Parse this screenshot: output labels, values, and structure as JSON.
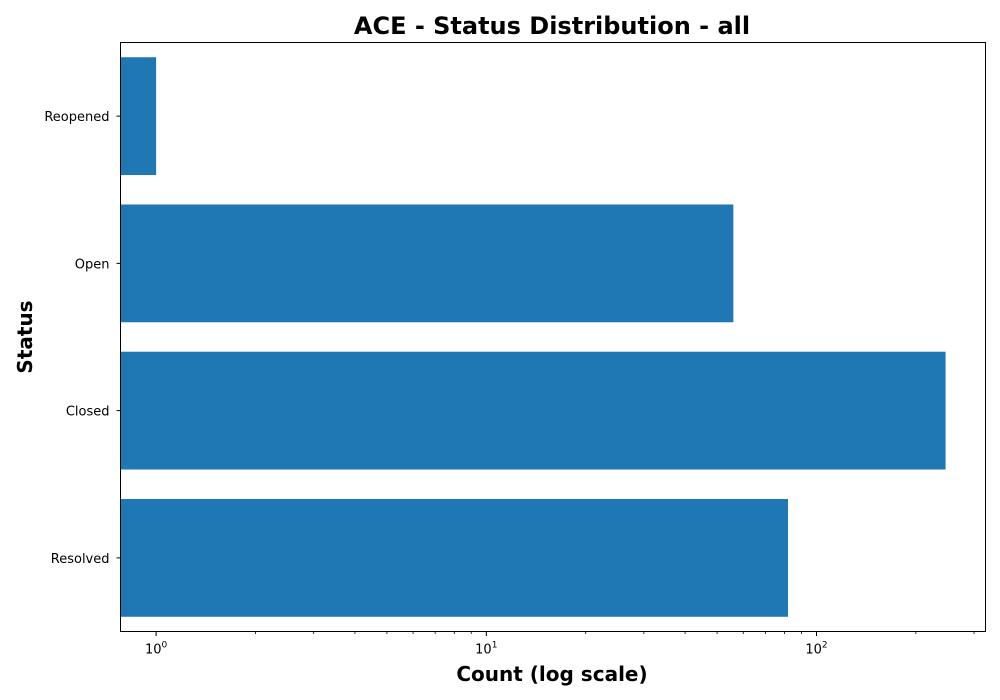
{
  "chart_data": {
    "type": "bar",
    "orientation": "horizontal",
    "title": "ACE - Status Distribution - all",
    "xlabel": "Count (log scale)",
    "ylabel": "Status",
    "x_scale": "log",
    "xlim": [
      0.78,
      325
    ],
    "x_major_ticks": [
      {
        "value": 1,
        "base": "10",
        "exp": "0"
      },
      {
        "value": 10,
        "base": "10",
        "exp": "1"
      },
      {
        "value": 100,
        "base": "10",
        "exp": "2"
      }
    ],
    "x_minor_ticks": [
      2,
      3,
      4,
      5,
      6,
      7,
      8,
      9,
      20,
      30,
      40,
      50,
      60,
      70,
      80,
      90,
      200,
      300
    ],
    "categories": [
      "Resolved",
      "Closed",
      "Open",
      "Reopened"
    ],
    "values": [
      82,
      246,
      56,
      1
    ],
    "bar_color": "#1f77b4",
    "grid": false,
    "legend": "none"
  }
}
